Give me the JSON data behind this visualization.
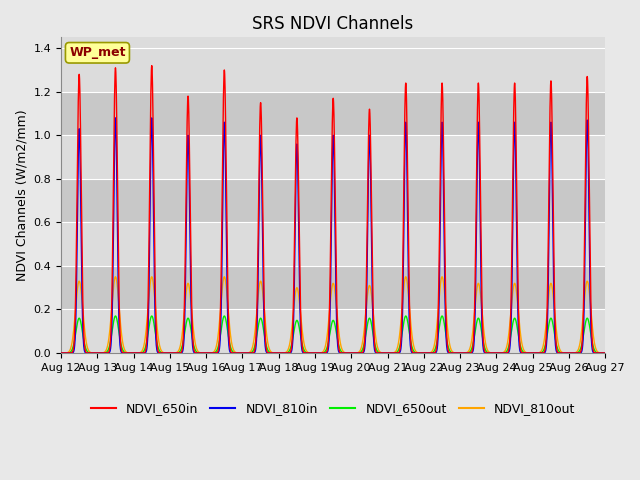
{
  "title": "SRS NDVI Channels",
  "ylabel": "NDVI Channels (W/m2/mm)",
  "annotation": "WP_met",
  "ylim": [
    0,
    1.45
  ],
  "xlim_days": [
    0,
    15
  ],
  "x_tick_labels": [
    "Aug 12",
    "Aug 13",
    "Aug 14",
    "Aug 15",
    "Aug 16",
    "Aug 17",
    "Aug 18",
    "Aug 19",
    "Aug 20",
    "Aug 21",
    "Aug 22",
    "Aug 23",
    "Aug 24",
    "Aug 25",
    "Aug 26",
    "Aug 27"
  ],
  "colors": {
    "NDVI_650in": "#FF0000",
    "NDVI_810in": "#0000EE",
    "NDVI_650out": "#00EE00",
    "NDVI_810out": "#FFA500"
  },
  "background_color": "#E8E8E8",
  "plot_background": "#DCDCDC",
  "grid_color": "#F0F0F0",
  "peak_650in": [
    1.28,
    1.31,
    1.32,
    1.18,
    1.3,
    1.15,
    1.08,
    1.17,
    1.12,
    1.24,
    1.24,
    1.24,
    1.24,
    1.25,
    1.27
  ],
  "peak_810in": [
    1.03,
    1.08,
    1.08,
    1.0,
    1.06,
    1.0,
    0.96,
    1.0,
    1.0,
    1.06,
    1.06,
    1.06,
    1.06,
    1.06,
    1.07
  ],
  "peak_650out": [
    0.16,
    0.17,
    0.17,
    0.16,
    0.17,
    0.16,
    0.15,
    0.15,
    0.16,
    0.17,
    0.17,
    0.16,
    0.16,
    0.16,
    0.16
  ],
  "peak_810out": [
    0.33,
    0.35,
    0.35,
    0.32,
    0.35,
    0.33,
    0.3,
    0.32,
    0.31,
    0.35,
    0.35,
    0.32,
    0.32,
    0.32,
    0.33
  ],
  "title_fontsize": 12,
  "label_fontsize": 9,
  "tick_fontsize": 8,
  "legend_fontsize": 9,
  "band_colors": [
    "#DCDCDC",
    "#C8C8C8"
  ],
  "ytick_vals": [
    0.0,
    0.2,
    0.4,
    0.6,
    0.8,
    1.0,
    1.2,
    1.4
  ]
}
